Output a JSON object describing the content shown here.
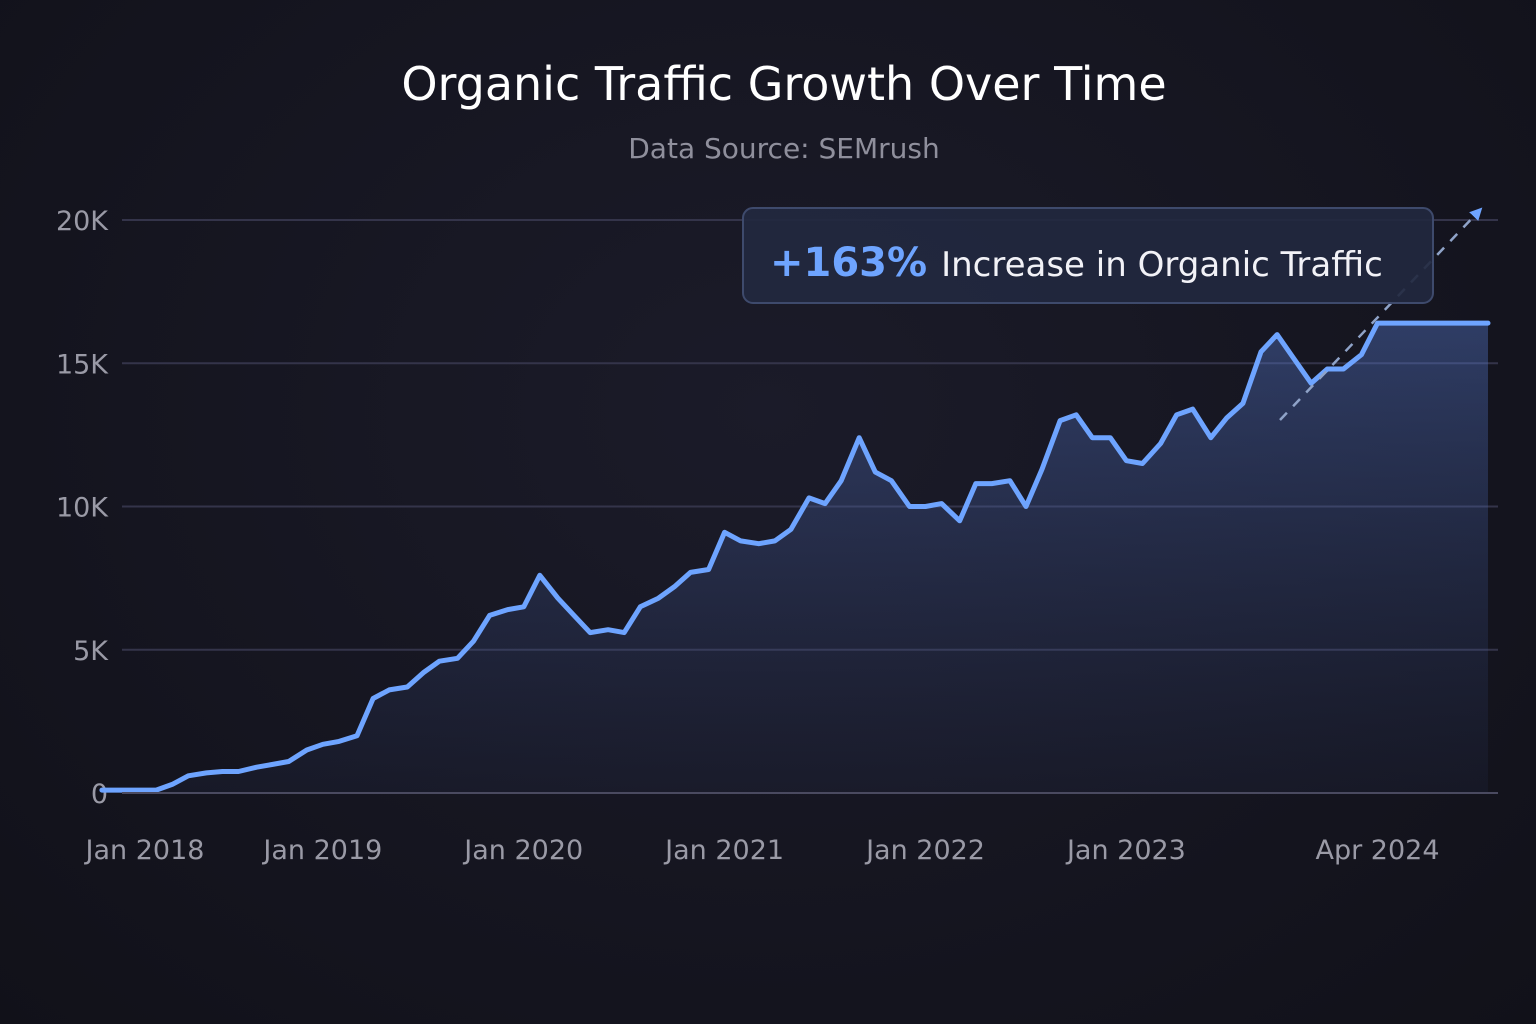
{
  "colors": {
    "accent": "#6ea4ff",
    "grid": "#34344a",
    "axis": "#4a4a60",
    "tick_text": "#9a9aa6",
    "callout_bg": "#22283f",
    "callout_border": "#3e4a6c"
  },
  "callout": {
    "value": "+163%",
    "label": "Increase in Organic Traffic"
  },
  "chart_data": {
    "type": "area",
    "title": "Organic Traffic Growth Over Time",
    "subtitle": "Data Source: SEMrush",
    "xlabel": "",
    "ylabel": "",
    "ylim": [
      0,
      20000
    ],
    "xlim": [
      2018.0,
      2024.8
    ],
    "grid": true,
    "y_ticks": [
      {
        "value": 0,
        "label": "0"
      },
      {
        "value": 5000,
        "label": "5K"
      },
      {
        "value": 10000,
        "label": "10K"
      },
      {
        "value": 15000,
        "label": "15K"
      },
      {
        "value": 20000,
        "label": "20K"
      }
    ],
    "x_ticks": [
      {
        "value": 2018.0,
        "label": "Jan 2018"
      },
      {
        "value": 2019.0,
        "label": "Jan 2019"
      },
      {
        "value": 2020.0,
        "label": "Jan 2020"
      },
      {
        "value": 2021.0,
        "label": "Jan 2021"
      },
      {
        "value": 2022.0,
        "label": "Jan 2022"
      },
      {
        "value": 2023.0,
        "label": "Jan 2023"
      },
      {
        "value": 2024.25,
        "label": "Apr 2024"
      }
    ],
    "series": [
      {
        "name": "Organic Traffic",
        "x": [
          2017.9,
          2018.0,
          2018.08,
          2018.17,
          2018.25,
          2018.33,
          2018.42,
          2018.5,
          2018.58,
          2018.67,
          2018.75,
          2018.83,
          2018.92,
          2019.0,
          2019.08,
          2019.17,
          2019.25,
          2019.33,
          2019.42,
          2019.5,
          2019.58,
          2019.67,
          2019.75,
          2019.83,
          2019.92,
          2020.0,
          2020.08,
          2020.17,
          2020.25,
          2020.33,
          2020.42,
          2020.5,
          2020.58,
          2020.67,
          2020.75,
          2020.83,
          2020.92,
          2021.0,
          2021.08,
          2021.17,
          2021.25,
          2021.33,
          2021.42,
          2021.5,
          2021.58,
          2021.67,
          2021.75,
          2021.83,
          2021.92,
          2022.0,
          2022.08,
          2022.17,
          2022.25,
          2022.33,
          2022.42,
          2022.5,
          2022.58,
          2022.67,
          2022.75,
          2022.83,
          2022.92,
          2023.0,
          2023.08,
          2023.17,
          2023.25,
          2023.33,
          2023.42,
          2023.5,
          2023.58,
          2023.67,
          2023.75,
          2023.83,
          2023.92,
          2024.0,
          2024.08,
          2024.17,
          2024.25,
          2024.33,
          2024.42,
          2024.5,
          2024.58,
          2024.67,
          2024.75,
          2024.8
        ],
        "values": [
          100,
          100,
          100,
          100,
          300,
          600,
          700,
          750,
          750,
          900,
          1000,
          1100,
          1500,
          1700,
          1800,
          2000,
          3300,
          3600,
          3700,
          4200,
          4600,
          4700,
          5300,
          6200,
          6400,
          6500,
          7600,
          6800,
          6200,
          5600,
          5700,
          5600,
          6500,
          6800,
          7200,
          7700,
          7800,
          9100,
          8800,
          8700,
          8800,
          9200,
          10300,
          10100,
          10900,
          12400,
          11200,
          10900,
          10000,
          10000,
          10100,
          9500,
          10800,
          10800,
          10900,
          10000,
          11300,
          13000,
          13200,
          12400,
          12400,
          11600,
          11500,
          12200,
          13200,
          13400,
          12400,
          13100,
          13600,
          15400,
          16000,
          15200,
          14300,
          14800,
          14800,
          15300,
          16400,
          16400,
          16400,
          16400,
          16400,
          16400,
          16400,
          16400
        ]
      }
    ]
  }
}
